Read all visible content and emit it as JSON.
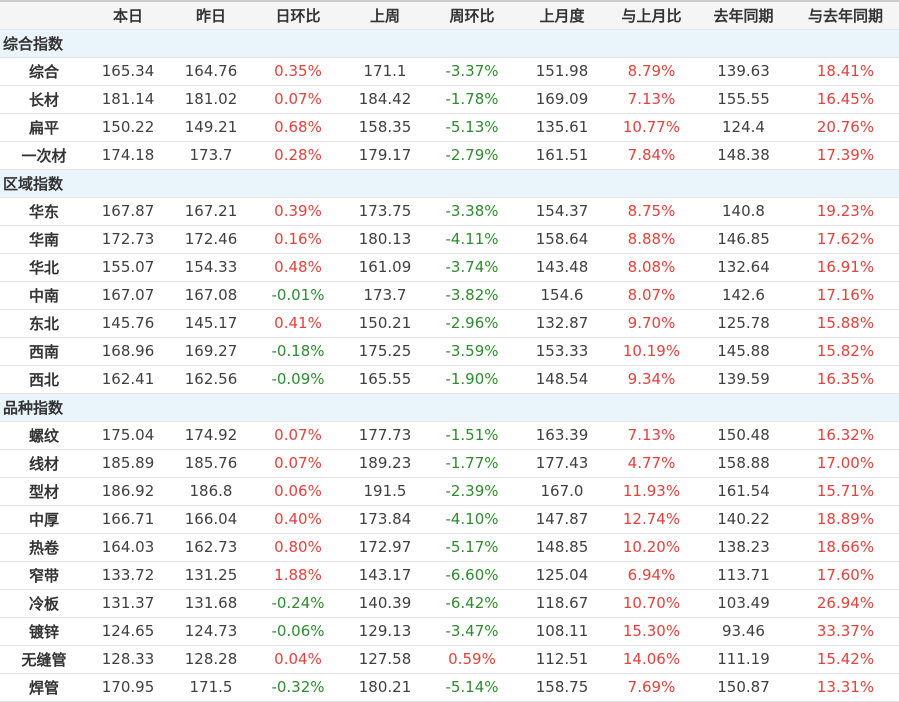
{
  "colors": {
    "positive_change": "#e5413c",
    "negative_change": "#2e8b2e",
    "group_row_background": "#e9f4fb",
    "header_background": "#f5f5f5"
  },
  "chart_data": {
    "type": "table",
    "columns": [
      "",
      "本日",
      "昨日",
      "日环比",
      "上周",
      "周环比",
      "上月度",
      "与上月比",
      "去年同期",
      "与去年同期"
    ],
    "groups": [
      {
        "title": "综合指数",
        "rows": [
          {
            "label": "综合",
            "values": [
              "165.34",
              "164.76",
              "0.35%",
              "171.1",
              "-3.37%",
              "151.98",
              "8.79%",
              "139.63",
              "18.41%"
            ],
            "styles": [
              "n",
              "n",
              "up",
              "n",
              "down",
              "n",
              "up",
              "n",
              "up"
            ]
          },
          {
            "label": "长材",
            "values": [
              "181.14",
              "181.02",
              "0.07%",
              "184.42",
              "-1.78%",
              "169.09",
              "7.13%",
              "155.55",
              "16.45%"
            ],
            "styles": [
              "n",
              "n",
              "up",
              "n",
              "down",
              "n",
              "up",
              "n",
              "up"
            ]
          },
          {
            "label": "扁平",
            "values": [
              "150.22",
              "149.21",
              "0.68%",
              "158.35",
              "-5.13%",
              "135.61",
              "10.77%",
              "124.4",
              "20.76%"
            ],
            "styles": [
              "n",
              "n",
              "up",
              "n",
              "down",
              "n",
              "up",
              "n",
              "up"
            ]
          },
          {
            "label": "一次材",
            "values": [
              "174.18",
              "173.7",
              "0.28%",
              "179.17",
              "-2.79%",
              "161.51",
              "7.84%",
              "148.38",
              "17.39%"
            ],
            "styles": [
              "n",
              "n",
              "up",
              "n",
              "down",
              "n",
              "up",
              "n",
              "up"
            ]
          }
        ]
      },
      {
        "title": "区域指数",
        "rows": [
          {
            "label": "华东",
            "values": [
              "167.87",
              "167.21",
              "0.39%",
              "173.75",
              "-3.38%",
              "154.37",
              "8.75%",
              "140.8",
              "19.23%"
            ],
            "styles": [
              "n",
              "n",
              "up",
              "n",
              "down",
              "n",
              "up",
              "n",
              "up"
            ]
          },
          {
            "label": "华南",
            "values": [
              "172.73",
              "172.46",
              "0.16%",
              "180.13",
              "-4.11%",
              "158.64",
              "8.88%",
              "146.85",
              "17.62%"
            ],
            "styles": [
              "n",
              "n",
              "up",
              "n",
              "down",
              "n",
              "up",
              "n",
              "up"
            ]
          },
          {
            "label": "华北",
            "values": [
              "155.07",
              "154.33",
              "0.48%",
              "161.09",
              "-3.74%",
              "143.48",
              "8.08%",
              "132.64",
              "16.91%"
            ],
            "styles": [
              "n",
              "n",
              "up",
              "n",
              "down",
              "n",
              "up",
              "n",
              "up"
            ]
          },
          {
            "label": "中南",
            "values": [
              "167.07",
              "167.08",
              "-0.01%",
              "173.7",
              "-3.82%",
              "154.6",
              "8.07%",
              "142.6",
              "17.16%"
            ],
            "styles": [
              "n",
              "n",
              "down",
              "n",
              "down",
              "n",
              "up",
              "n",
              "up"
            ]
          },
          {
            "label": "东北",
            "values": [
              "145.76",
              "145.17",
              "0.41%",
              "150.21",
              "-2.96%",
              "132.87",
              "9.70%",
              "125.78",
              "15.88%"
            ],
            "styles": [
              "n",
              "n",
              "up",
              "n",
              "down",
              "n",
              "up",
              "n",
              "up"
            ]
          },
          {
            "label": "西南",
            "values": [
              "168.96",
              "169.27",
              "-0.18%",
              "175.25",
              "-3.59%",
              "153.33",
              "10.19%",
              "145.88",
              "15.82%"
            ],
            "styles": [
              "n",
              "n",
              "down",
              "n",
              "down",
              "n",
              "up",
              "n",
              "up"
            ]
          },
          {
            "label": "西北",
            "values": [
              "162.41",
              "162.56",
              "-0.09%",
              "165.55",
              "-1.90%",
              "148.54",
              "9.34%",
              "139.59",
              "16.35%"
            ],
            "styles": [
              "n",
              "n",
              "down",
              "n",
              "down",
              "n",
              "up",
              "n",
              "up"
            ]
          }
        ]
      },
      {
        "title": "品种指数",
        "rows": [
          {
            "label": "螺纹",
            "values": [
              "175.04",
              "174.92",
              "0.07%",
              "177.73",
              "-1.51%",
              "163.39",
              "7.13%",
              "150.48",
              "16.32%"
            ],
            "styles": [
              "n",
              "n",
              "up",
              "n",
              "down",
              "n",
              "up",
              "n",
              "up"
            ]
          },
          {
            "label": "线材",
            "values": [
              "185.89",
              "185.76",
              "0.07%",
              "189.23",
              "-1.77%",
              "177.43",
              "4.77%",
              "158.88",
              "17.00%"
            ],
            "styles": [
              "n",
              "n",
              "up",
              "n",
              "down",
              "n",
              "up",
              "n",
              "up"
            ]
          },
          {
            "label": "型材",
            "values": [
              "186.92",
              "186.8",
              "0.06%",
              "191.5",
              "-2.39%",
              "167.0",
              "11.93%",
              "161.54",
              "15.71%"
            ],
            "styles": [
              "n",
              "n",
              "up",
              "n",
              "down",
              "n",
              "up",
              "n",
              "up"
            ]
          },
          {
            "label": "中厚",
            "values": [
              "166.71",
              "166.04",
              "0.40%",
              "173.84",
              "-4.10%",
              "147.87",
              "12.74%",
              "140.22",
              "18.89%"
            ],
            "styles": [
              "n",
              "n",
              "up",
              "n",
              "down",
              "n",
              "up",
              "n",
              "up"
            ]
          },
          {
            "label": "热卷",
            "values": [
              "164.03",
              "162.73",
              "0.80%",
              "172.97",
              "-5.17%",
              "148.85",
              "10.20%",
              "138.23",
              "18.66%"
            ],
            "styles": [
              "n",
              "n",
              "up",
              "n",
              "down",
              "n",
              "up",
              "n",
              "up"
            ]
          },
          {
            "label": "窄带",
            "values": [
              "133.72",
              "131.25",
              "1.88%",
              "143.17",
              "-6.60%",
              "125.04",
              "6.94%",
              "113.71",
              "17.60%"
            ],
            "styles": [
              "n",
              "n",
              "up",
              "n",
              "down",
              "n",
              "up",
              "n",
              "up"
            ]
          },
          {
            "label": "冷板",
            "values": [
              "131.37",
              "131.68",
              "-0.24%",
              "140.39",
              "-6.42%",
              "118.67",
              "10.70%",
              "103.49",
              "26.94%"
            ],
            "styles": [
              "n",
              "n",
              "down",
              "n",
              "down",
              "n",
              "up",
              "n",
              "up"
            ]
          },
          {
            "label": "镀锌",
            "values": [
              "124.65",
              "124.73",
              "-0.06%",
              "129.13",
              "-3.47%",
              "108.11",
              "15.30%",
              "93.46",
              "33.37%"
            ],
            "styles": [
              "n",
              "n",
              "down",
              "n",
              "down",
              "n",
              "up",
              "n",
              "up"
            ]
          },
          {
            "label": "无缝管",
            "values": [
              "128.33",
              "128.28",
              "0.04%",
              "127.58",
              "0.59%",
              "112.51",
              "14.06%",
              "111.19",
              "15.42%"
            ],
            "styles": [
              "n",
              "n",
              "up",
              "n",
              "up",
              "n",
              "up",
              "n",
              "up"
            ]
          },
          {
            "label": "焊管",
            "values": [
              "170.95",
              "171.5",
              "-0.32%",
              "180.21",
              "-5.14%",
              "158.75",
              "7.69%",
              "150.87",
              "13.31%"
            ],
            "styles": [
              "n",
              "n",
              "down",
              "n",
              "down",
              "n",
              "up",
              "n",
              "up"
            ]
          }
        ]
      }
    ]
  }
}
